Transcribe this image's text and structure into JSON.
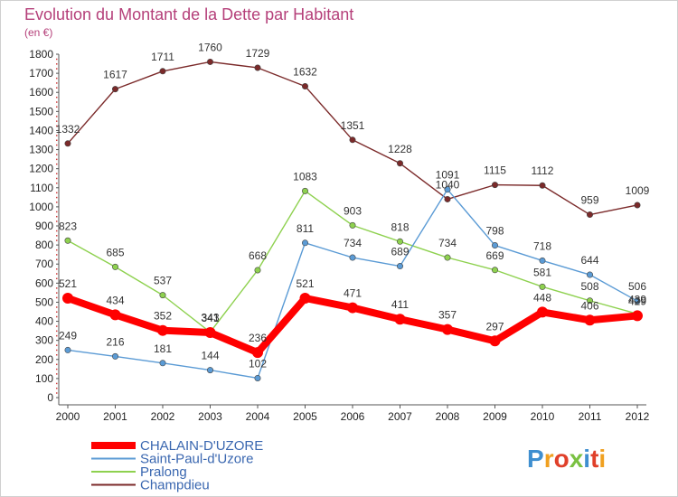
{
  "chart_data": {
    "type": "line",
    "title": "Evolution du Montant de la Dette par Habitant",
    "subtitle": "(en €)",
    "x": [
      "2000",
      "2001",
      "2002",
      "2003",
      "2004",
      "2005",
      "2006",
      "2007",
      "2008",
      "2009",
      "2010",
      "2011",
      "2012"
    ],
    "ylim": [
      0,
      1800
    ],
    "yticks": [
      0,
      100,
      200,
      300,
      400,
      500,
      600,
      700,
      800,
      900,
      1000,
      1100,
      1200,
      1300,
      1400,
      1500,
      1600,
      1700,
      1800
    ],
    "grid": false,
    "legend_position": "bottom-left",
    "series": [
      {
        "name": "CHALAIN-D'UZORE",
        "color": "#ff0000",
        "values": [
          521,
          434,
          352,
          341,
          236,
          521,
          471,
          411,
          357,
          297,
          448,
          406,
          429
        ]
      },
      {
        "name": "Saint-Paul-d'Uzore",
        "color": "#5b9bd5",
        "values": [
          249,
          216,
          181,
          144,
          102,
          811,
          734,
          689,
          1091,
          798,
          718,
          644,
          506
        ]
      },
      {
        "name": "Pralong",
        "color": "#8ed14f",
        "values": [
          823,
          685,
          537,
          343,
          668,
          1083,
          903,
          818,
          734,
          669,
          581,
          508,
          439
        ]
      },
      {
        "name": "Champdieu",
        "color": "#7b2a2a",
        "values": [
          1332,
          1617,
          1711,
          1760,
          1729,
          1632,
          1351,
          1228,
          1040,
          1115,
          1112,
          959,
          1009
        ]
      }
    ]
  },
  "logo": {
    "text": "Proxiti"
  }
}
